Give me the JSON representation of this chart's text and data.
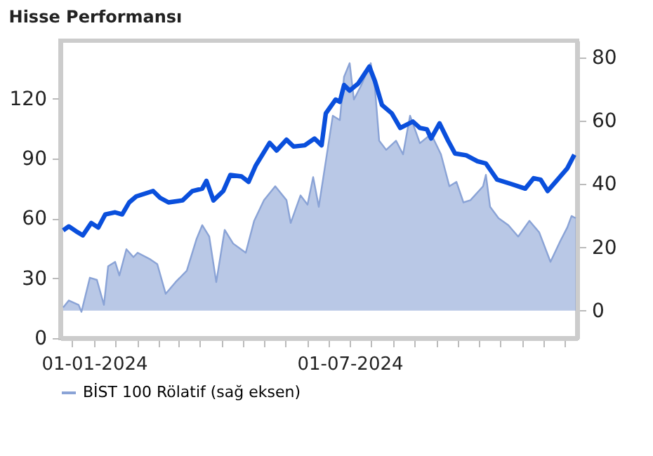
{
  "chart_data": {
    "type": "line",
    "title": "Hisse Performansı",
    "xlim": [
      "2023-12-08",
      "2024-12-10"
    ],
    "xticks": [
      {
        "value": "2023-12-16",
        "label": null
      },
      {
        "value": "2024-01-01",
        "label": "01-01-2024"
      },
      {
        "value": "2024-01-16",
        "label": null
      },
      {
        "value": "2024-02-01",
        "label": null
      },
      {
        "value": "2024-02-16",
        "label": null
      },
      {
        "value": "2024-03-01",
        "label": null
      },
      {
        "value": "2024-03-16",
        "label": null
      },
      {
        "value": "2024-04-01",
        "label": null
      },
      {
        "value": "2024-04-16",
        "label": null
      },
      {
        "value": "2024-05-01",
        "label": null
      },
      {
        "value": "2024-05-16",
        "label": null
      },
      {
        "value": "2024-06-01",
        "label": null
      },
      {
        "value": "2024-06-16",
        "label": null
      },
      {
        "value": "2024-07-01",
        "label": "01-07-2024"
      },
      {
        "value": "2024-07-16",
        "label": null
      },
      {
        "value": "2024-08-01",
        "label": null
      },
      {
        "value": "2024-08-16",
        "label": null
      },
      {
        "value": "2024-09-01",
        "label": null
      },
      {
        "value": "2024-09-16",
        "label": null
      },
      {
        "value": "2024-10-01",
        "label": null
      },
      {
        "value": "2024-10-16",
        "label": null
      },
      {
        "value": "2024-11-01",
        "label": null
      },
      {
        "value": "2024-11-16",
        "label": null
      },
      {
        "value": "2024-12-01",
        "label": null
      }
    ],
    "ylim": [
      0,
      149
    ],
    "yticks": [
      0,
      30,
      60,
      90,
      120
    ],
    "y2lim": [
      -8.7,
      85.3
    ],
    "y2ticks": [
      0,
      20,
      40,
      60,
      80
    ],
    "grid": false,
    "legend": "bottom",
    "series": [
      {
        "color": "#0a4fdc",
        "x": [
          "2023-12-10",
          "2023-12-14",
          "2023-12-19",
          "2023-12-24",
          "2023-12-30",
          "2024-01-04",
          "2024-01-09",
          "2024-01-16",
          "2024-01-21",
          "2024-01-26",
          "2024-01-31",
          "2024-02-12",
          "2024-02-17",
          "2024-02-23",
          "2024-03-04",
          "2024-03-11",
          "2024-03-18",
          "2024-03-21",
          "2024-03-26",
          "2024-04-02",
          "2024-04-07",
          "2024-04-15",
          "2024-04-20",
          "2024-04-25",
          "2024-05-05",
          "2024-05-10",
          "2024-05-17",
          "2024-05-22",
          "2024-05-30",
          "2024-06-06",
          "2024-06-11",
          "2024-06-14",
          "2024-06-21",
          "2024-06-24",
          "2024-06-27",
          "2024-07-01",
          "2024-07-07",
          "2024-07-15",
          "2024-07-19",
          "2024-07-24",
          "2024-07-31",
          "2024-08-06",
          "2024-08-15",
          "2024-08-20",
          "2024-08-25",
          "2024-08-28",
          "2024-09-03",
          "2024-09-09",
          "2024-09-14",
          "2024-09-22",
          "2024-09-30",
          "2024-10-06",
          "2024-10-14",
          "2024-10-24",
          "2024-11-03",
          "2024-11-09",
          "2024-11-14",
          "2024-11-19",
          "2024-11-26",
          "2024-12-03",
          "2024-12-08"
        ],
        "values": [
          54,
          56,
          53.6,
          51.5,
          57.7,
          55.4,
          62,
          63,
          62,
          68,
          71,
          73.7,
          70.3,
          68,
          69,
          73.7,
          74.9,
          78.8,
          69,
          73.7,
          81.7,
          81,
          78.3,
          86.3,
          97.8,
          94,
          99.4,
          96,
          96.6,
          100,
          96.6,
          112.6,
          119.5,
          118.4,
          126.8,
          124,
          127.5,
          136,
          128.7,
          116.8,
          112.6,
          105.3,
          108.5,
          105.3,
          104.6,
          100,
          107.6,
          99,
          92.5,
          91.6,
          88.6,
          87.5,
          79.4,
          77.2,
          74.9,
          80.1,
          79.4,
          73.7,
          79.4,
          85.1,
          91.9
        ]
      },
      {
        "type": "area",
        "axis": "y2",
        "name": "BİST 100 Rölatif (sağ eksen)",
        "color": "#8aa3d6",
        "x": [
          "2023-12-10",
          "2023-12-14",
          "2023-12-21",
          "2023-12-23",
          "2023-12-29",
          "2024-01-03",
          "2024-01-08",
          "2024-01-11",
          "2024-01-16",
          "2024-01-19",
          "2024-01-24",
          "2024-01-29",
          "2024-02-01",
          "2024-02-10",
          "2024-02-15",
          "2024-02-21",
          "2024-02-28",
          "2024-03-07",
          "2024-03-14",
          "2024-03-18",
          "2024-03-23",
          "2024-03-28",
          "2024-04-03",
          "2024-04-09",
          "2024-04-18",
          "2024-04-24",
          "2024-05-01",
          "2024-05-09",
          "2024-05-17",
          "2024-05-20",
          "2024-05-27",
          "2024-06-01",
          "2024-06-05",
          "2024-06-09",
          "2024-06-12",
          "2024-06-19",
          "2024-06-24",
          "2024-06-27",
          "2024-07-01",
          "2024-07-04",
          "2024-07-09",
          "2024-07-16",
          "2024-07-19",
          "2024-07-22",
          "2024-07-27",
          "2024-08-03",
          "2024-08-08",
          "2024-08-13",
          "2024-08-20",
          "2024-08-28",
          "2024-09-04",
          "2024-09-10",
          "2024-09-15",
          "2024-09-20",
          "2024-09-25",
          "2024-10-04",
          "2024-10-06",
          "2024-10-09",
          "2024-10-15",
          "2024-10-22",
          "2024-10-29",
          "2024-11-06",
          "2024-11-13",
          "2024-11-21",
          "2024-11-28",
          "2024-12-03",
          "2024-12-06",
          "2024-12-09"
        ],
        "values": [
          1.0,
          3.2,
          1.8,
          -0.4,
          10.4,
          9.7,
          1.8,
          14,
          15.4,
          11.1,
          19.4,
          16.9,
          18.3,
          16.2,
          14.7,
          5.3,
          9,
          12.6,
          22.7,
          27,
          23.4,
          9,
          25.5,
          21.2,
          18.3,
          28.4,
          34.9,
          39.3,
          34.9,
          27.7,
          36.4,
          33.5,
          42.2,
          32.8,
          41.4,
          61.6,
          60.2,
          73.9,
          78.2,
          66.7,
          71,
          78.2,
          70.3,
          53.7,
          50.8,
          53.7,
          49.4,
          61.6,
          52.9,
          55.8,
          49.4,
          39.3,
          40.7,
          34.2,
          34.9,
          39.3,
          42.9,
          32.8,
          29.2,
          27,
          23.4,
          28.4,
          24.7,
          15.4,
          22,
          26.3,
          29.9,
          29.2
        ]
      }
    ]
  }
}
